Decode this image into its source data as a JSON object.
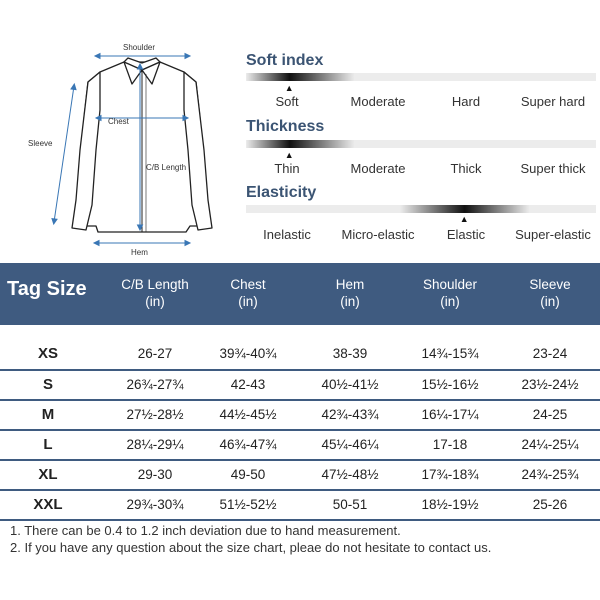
{
  "diagram": {
    "labels": {
      "shoulder": "Shoulder",
      "chest": "Chest",
      "cb_length": "C/B Length",
      "sleeve": "Sleeve",
      "hem": "Hem"
    }
  },
  "scales": [
    {
      "title": "Soft index",
      "options": [
        "Soft",
        "Moderate",
        "Hard",
        "Super hard"
      ],
      "selected_index": 0
    },
    {
      "title": "Thickness",
      "options": [
        "Thin",
        "Moderate",
        "Thick",
        "Super thick"
      ],
      "selected_index": 0
    },
    {
      "title": "Elasticity",
      "options": [
        "Inelastic",
        "Micro-elastic",
        "Elastic",
        "Super-elastic"
      ],
      "selected_index": 2
    }
  ],
  "marker_glyph": "▲",
  "table": {
    "title": "Tag Size",
    "columns": [
      {
        "name": "C/B Length",
        "unit": "(in)"
      },
      {
        "name": "Chest",
        "unit": "(in)"
      },
      {
        "name": "Hem",
        "unit": "(in)"
      },
      {
        "name": "Shoulder",
        "unit": "(in)"
      },
      {
        "name": "Sleeve",
        "unit": "(in)"
      }
    ],
    "rows": [
      {
        "size": "XS",
        "values": [
          "26-27",
          "39¾-40¾",
          "38-39",
          "14¾-15¾",
          "23-24"
        ]
      },
      {
        "size": "S",
        "values": [
          "26¾-27¾",
          "42-43",
          "40½-41½",
          "15½-16½",
          "23½-24½"
        ]
      },
      {
        "size": "M",
        "values": [
          "27½-28½",
          "44½-45½",
          "42¾-43¾",
          "16¼-17¼",
          "24-25"
        ]
      },
      {
        "size": "L",
        "values": [
          "28¼-29¼",
          "46¾-47¾",
          "45¼-46¼",
          "17-18",
          "24¼-25¼"
        ]
      },
      {
        "size": "XL",
        "values": [
          "29-30",
          "49-50",
          "47½-48½",
          "17¾-18¾",
          "24¾-25¾"
        ]
      },
      {
        "size": "XXL",
        "values": [
          "29¾-30¾",
          "51½-52½",
          "50-51",
          "18½-19½",
          "25-26"
        ]
      }
    ]
  },
  "notes": [
    "1. There can be 0.4 to 1.2 inch deviation due to hand measurement.",
    "2. If you have any question about the size chart, pleae do not hesitate to contact us."
  ],
  "colors": {
    "header_bg": "#3f5b80",
    "title_blue": "#3b5473",
    "measure_blue": "#3a77b5"
  }
}
